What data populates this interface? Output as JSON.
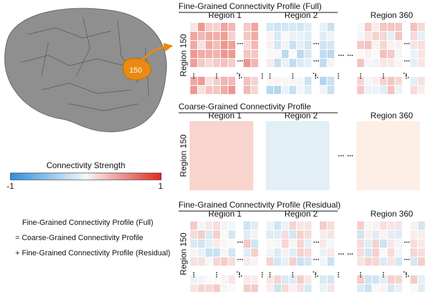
{
  "brain": {
    "label": "150"
  },
  "colorbar": {
    "title": "Connectivity Strength",
    "min_label": "-1",
    "max_label": "1"
  },
  "equation": [
    "Fine-Grained Connectivity Profile (Full)",
    "= Coarse-Grained Connectivity Profile",
    "+ Fine-Grained Connectivity Profile (Residual)"
  ],
  "panels": [
    {
      "title": "Fine-Grained Connectivity Profile (Full)",
      "regions": [
        "Region 1",
        "Region 2",
        "Region 360"
      ],
      "row_label": "Region 150"
    },
    {
      "title": "Coarse-Grained Connectivity Profile",
      "regions": [
        "Region 1",
        "Region 2",
        "Region 360"
      ],
      "row_label": "Region 150"
    },
    {
      "title": "Fine-Grained Connectivity Profile (Residual)",
      "regions": [
        "Region 1",
        "Region 2",
        "Region 360"
      ],
      "row_label": "Region 150"
    }
  ]
}
